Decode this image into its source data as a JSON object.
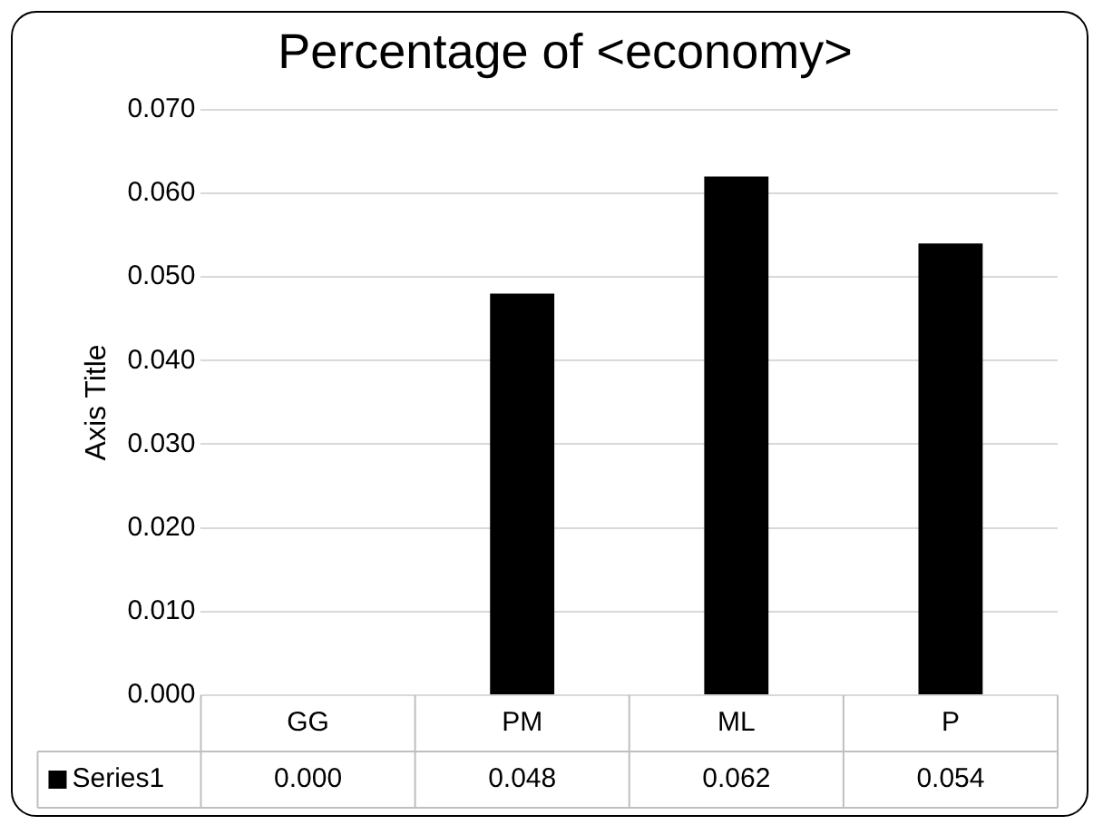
{
  "chart_data": {
    "type": "bar",
    "title": "Percentage of <economy>",
    "ylabel": "Axis Title",
    "categories": [
      "GG",
      "PM",
      "ML",
      "P"
    ],
    "series": [
      {
        "name": "Series1",
        "color": "#000000",
        "values": [
          0.0,
          0.048,
          0.062,
          0.054
        ],
        "value_labels": [
          "0.000",
          "0.048",
          "0.062",
          "0.054"
        ]
      }
    ],
    "ylim": [
      0,
      0.07
    ],
    "yticks": [
      {
        "value": 0,
        "label": "0.000"
      },
      {
        "value": 0.01,
        "label": "0.010"
      },
      {
        "value": 0.02,
        "label": "0.020"
      },
      {
        "value": 0.03,
        "label": "0.030"
      },
      {
        "value": 0.04,
        "label": "0.040"
      },
      {
        "value": 0.05,
        "label": "0.050"
      },
      {
        "value": 0.06,
        "label": "0.060"
      },
      {
        "value": 0.07,
        "label": "0.070"
      }
    ],
    "grid": "y",
    "legend": "bottom"
  }
}
